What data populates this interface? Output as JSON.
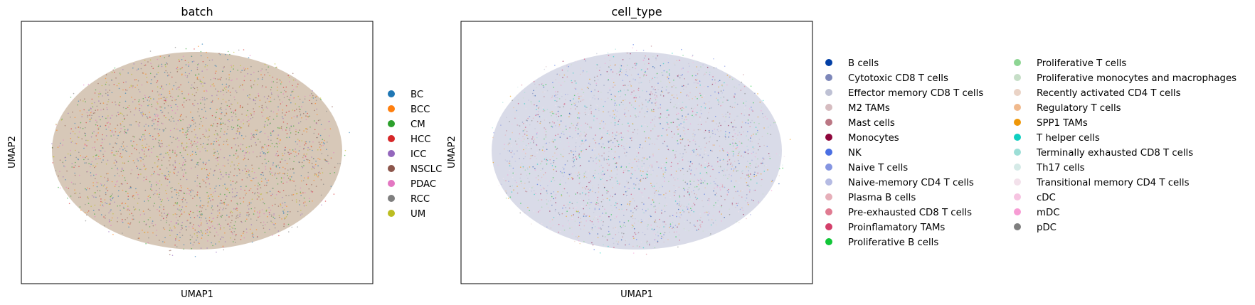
{
  "chart_data": [
    {
      "type": "scatter",
      "title": "batch",
      "xlabel": "UMAP1",
      "ylabel": "UMAP2",
      "ticks": "none",
      "legend_position": "right",
      "legend_columns": 1,
      "categories": [
        {
          "name": "BC",
          "color": "#1f77b4"
        },
        {
          "name": "BCC",
          "color": "#ff7f0e"
        },
        {
          "name": "CM",
          "color": "#2ca02c"
        },
        {
          "name": "HCC",
          "color": "#d62728"
        },
        {
          "name": "ICC",
          "color": "#9467bd"
        },
        {
          "name": "NSCLC",
          "color": "#8c564b"
        },
        {
          "name": "PDAC",
          "color": "#e377c2"
        },
        {
          "name": "RCC",
          "color": "#7f7f7f"
        },
        {
          "name": "UM",
          "color": "#bcbd22"
        }
      ],
      "point_cloud": {
        "shape": "ellipse",
        "dominant_color": "#b79a7e"
      }
    },
    {
      "type": "scatter",
      "title": "cell_type",
      "xlabel": "UMAP1",
      "ylabel": "UMAP2",
      "ticks": "none",
      "legend_position": "right",
      "legend_columns": 2,
      "categories": [
        {
          "name": "B cells",
          "color": "#023fa5"
        },
        {
          "name": "Cytotoxic CD8 T cells",
          "color": "#7d87b9"
        },
        {
          "name": "Effector memory CD8 T cells",
          "color": "#bec1d4"
        },
        {
          "name": "M2 TAMs",
          "color": "#d6bcc0"
        },
        {
          "name": "Mast cells",
          "color": "#bb7784"
        },
        {
          "name": "Monocytes",
          "color": "#8e063b"
        },
        {
          "name": "NK",
          "color": "#4a6fe3"
        },
        {
          "name": "Naive T cells",
          "color": "#8595e1"
        },
        {
          "name": "Naive-memory CD4 T cells",
          "color": "#b5bbe3"
        },
        {
          "name": "Plasma B cells",
          "color": "#e6afb9"
        },
        {
          "name": "Pre-exhausted CD8 T cells",
          "color": "#e07b91"
        },
        {
          "name": "Proinflamatory TAMs",
          "color": "#d33f6a"
        },
        {
          "name": "Proliferative B cells",
          "color": "#11c638"
        },
        {
          "name": "Proliferative T cells",
          "color": "#8dd593"
        },
        {
          "name": "Proliferative monocytes and macrophages",
          "color": "#c6dec7"
        },
        {
          "name": "Recently activated CD4 T cells",
          "color": "#ead3c6"
        },
        {
          "name": "Regulatory T cells",
          "color": "#f0b98d"
        },
        {
          "name": "SPP1 TAMs",
          "color": "#ef9708"
        },
        {
          "name": "T helper cells",
          "color": "#0fcfc0"
        },
        {
          "name": "Terminally exhausted CD8 T cells",
          "color": "#9cded6"
        },
        {
          "name": "Th17 cells",
          "color": "#d5eae7"
        },
        {
          "name": "Transitional memory CD4 T cells",
          "color": "#f3e1eb"
        },
        {
          "name": "cDC",
          "color": "#f6c4e1"
        },
        {
          "name": "mDC",
          "color": "#f79cd4"
        },
        {
          "name": "pDC",
          "color": "#7f7f7f"
        }
      ],
      "point_cloud": {
        "shape": "ellipse",
        "dominant_color": "#b9bdd6"
      }
    }
  ]
}
